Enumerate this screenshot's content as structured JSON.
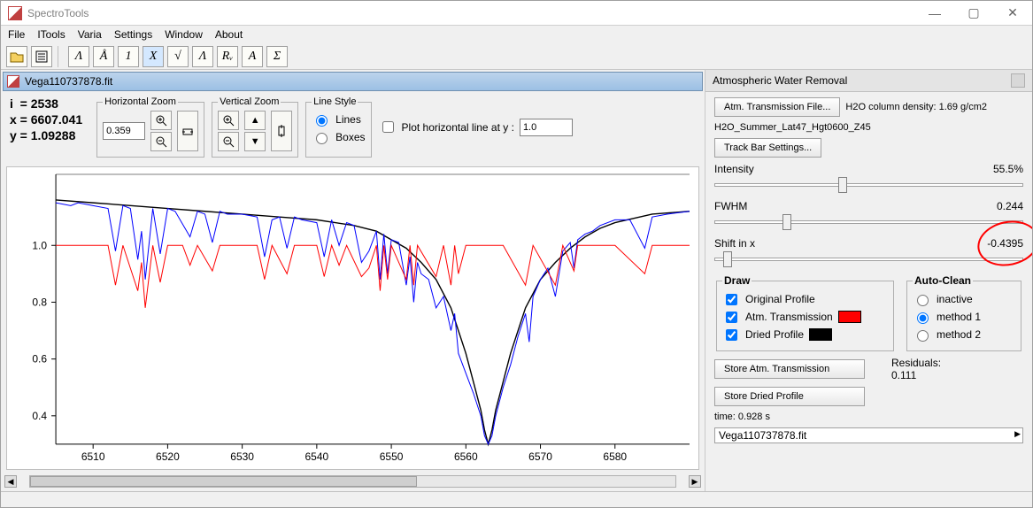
{
  "window": {
    "title": "SpectroTools",
    "minimize": "—",
    "maximize": "▢",
    "close": "✕"
  },
  "menubar": [
    "File",
    "ITools",
    "Varia",
    "Settings",
    "Window",
    "About"
  ],
  "toolbar": {
    "icons": [
      "open",
      "list"
    ],
    "letters": [
      "Λ",
      "Å",
      "1",
      "X",
      "√",
      "Λ",
      "Rᵥ",
      "A",
      "Σ"
    ]
  },
  "doc": {
    "title": "Vega110737878.fit"
  },
  "readout": {
    "i_label": "i",
    "i_val": "2538",
    "x_label": "x",
    "x_val": "6607.041",
    "y_label": "y",
    "y_val": "1.09288"
  },
  "hzoom": {
    "legend": "Horizontal Zoom",
    "value": "0.359",
    "in": "🔍+",
    "out": "🔍−",
    "reset": "⟲"
  },
  "vzoom": {
    "legend": "Vertical Zoom",
    "in": "🔍+",
    "out": "🔍−",
    "up": "▲",
    "down": "▼",
    "reset": "⟲"
  },
  "linestyle": {
    "legend": "Line Style",
    "lines": "Lines",
    "boxes": "Boxes"
  },
  "ploth": {
    "label": "Plot horizontal line at y :",
    "value": "1.0"
  },
  "chart": {
    "type": "line",
    "xlim": [
      6505,
      6590
    ],
    "ylim": [
      0.3,
      1.25
    ],
    "xticks": [
      6510,
      6520,
      6530,
      6540,
      6550,
      6560,
      6570,
      6580
    ],
    "yticks": [
      0.4,
      0.6,
      0.8,
      1.0
    ],
    "background": "#ffffff",
    "axis_color": "#000000",
    "tick_fontsize": 11,
    "series": {
      "blue": {
        "color": "#0000ff",
        "points": [
          [
            6505,
            1.15
          ],
          [
            6507,
            1.14
          ],
          [
            6508,
            1.15
          ],
          [
            6510,
            1.14
          ],
          [
            6512,
            1.13
          ],
          [
            6513,
            0.98
          ],
          [
            6514,
            1.14
          ],
          [
            6515,
            1.13
          ],
          [
            6516,
            0.95
          ],
          [
            6516.5,
            1.05
          ],
          [
            6517,
            0.88
          ],
          [
            6518,
            1.13
          ],
          [
            6519,
            0.97
          ],
          [
            6520,
            1.13
          ],
          [
            6521,
            1.12
          ],
          [
            6523,
            1.03
          ],
          [
            6524,
            1.12
          ],
          [
            6525,
            1.11
          ],
          [
            6526,
            1.01
          ],
          [
            6527,
            1.12
          ],
          [
            6528,
            1.11
          ],
          [
            6530,
            1.11
          ],
          [
            6532,
            1.1
          ],
          [
            6533,
            0.96
          ],
          [
            6534,
            1.09
          ],
          [
            6535,
            1.1
          ],
          [
            6536,
            0.99
          ],
          [
            6537,
            1.1
          ],
          [
            6538,
            1.09
          ],
          [
            6540,
            1.08
          ],
          [
            6541,
            0.96
          ],
          [
            6542,
            1.09
          ],
          [
            6543,
            1.0
          ],
          [
            6544,
            1.08
          ],
          [
            6545,
            1.07
          ],
          [
            6546,
            0.94
          ],
          [
            6547,
            0.98
          ],
          [
            6548,
            1.05
          ],
          [
            6548.5,
            0.88
          ],
          [
            6549,
            1.04
          ],
          [
            6549.5,
            0.9
          ],
          [
            6550,
            1.02
          ],
          [
            6551,
            1.01
          ],
          [
            6552,
            0.86
          ],
          [
            6552.5,
            0.96
          ],
          [
            6553,
            0.8
          ],
          [
            6553.5,
            0.94
          ],
          [
            6554,
            0.9
          ],
          [
            6555,
            0.88
          ],
          [
            6556,
            0.78
          ],
          [
            6557,
            0.82
          ],
          [
            6558,
            0.7
          ],
          [
            6558.5,
            0.76
          ],
          [
            6559,
            0.62
          ],
          [
            6560,
            0.55
          ],
          [
            6561,
            0.48
          ],
          [
            6562,
            0.4
          ],
          [
            6562.5,
            0.33
          ],
          [
            6563,
            0.3
          ],
          [
            6563.5,
            0.33
          ],
          [
            6564,
            0.4
          ],
          [
            6565,
            0.5
          ],
          [
            6566,
            0.58
          ],
          [
            6567,
            0.68
          ],
          [
            6568,
            0.76
          ],
          [
            6568.5,
            0.66
          ],
          [
            6569,
            0.82
          ],
          [
            6570,
            0.88
          ],
          [
            6571,
            0.92
          ],
          [
            6572,
            0.82
          ],
          [
            6573,
            0.98
          ],
          [
            6574,
            1.01
          ],
          [
            6574.5,
            0.92
          ],
          [
            6575,
            1.02
          ],
          [
            6576,
            1.04
          ],
          [
            6577,
            1.05
          ],
          [
            6578,
            1.07
          ],
          [
            6580,
            1.09
          ],
          [
            6582,
            1.09
          ],
          [
            6584,
            0.99
          ],
          [
            6585,
            1.1
          ],
          [
            6587,
            1.11
          ],
          [
            6590,
            1.12
          ]
        ]
      },
      "red": {
        "color": "#ff0000",
        "points": [
          [
            6505,
            1.0
          ],
          [
            6508,
            1.0
          ],
          [
            6510,
            1.0
          ],
          [
            6512,
            1.0
          ],
          [
            6513,
            0.86
          ],
          [
            6514,
            1.0
          ],
          [
            6516,
            0.84
          ],
          [
            6516.5,
            0.94
          ],
          [
            6517,
            0.78
          ],
          [
            6518,
            1.0
          ],
          [
            6519,
            0.87
          ],
          [
            6520,
            1.0
          ],
          [
            6522,
            1.0
          ],
          [
            6523,
            0.93
          ],
          [
            6524,
            1.0
          ],
          [
            6526,
            0.91
          ],
          [
            6527,
            1.0
          ],
          [
            6530,
            1.0
          ],
          [
            6532,
            1.0
          ],
          [
            6533,
            0.88
          ],
          [
            6534,
            1.0
          ],
          [
            6536,
            0.9
          ],
          [
            6537,
            1.0
          ],
          [
            6540,
            1.0
          ],
          [
            6541,
            0.89
          ],
          [
            6542,
            1.0
          ],
          [
            6543,
            0.93
          ],
          [
            6544,
            1.0
          ],
          [
            6546,
            0.89
          ],
          [
            6547,
            0.92
          ],
          [
            6548,
            1.0
          ],
          [
            6548.5,
            0.84
          ],
          [
            6549,
            1.0
          ],
          [
            6549.5,
            0.88
          ],
          [
            6550,
            1.0
          ],
          [
            6552,
            0.88
          ],
          [
            6552.5,
            1.0
          ],
          [
            6553,
            0.86
          ],
          [
            6553.5,
            1.0
          ],
          [
            6556,
            0.89
          ],
          [
            6557,
            1.0
          ],
          [
            6558,
            0.86
          ],
          [
            6558.5,
            1.0
          ],
          [
            6559,
            0.9
          ],
          [
            6560,
            1.0
          ],
          [
            6563,
            1.0
          ],
          [
            6565,
            1.0
          ],
          [
            6568,
            0.86
          ],
          [
            6569,
            1.0
          ],
          [
            6572,
            0.86
          ],
          [
            6573,
            1.0
          ],
          [
            6574.5,
            0.91
          ],
          [
            6575,
            1.0
          ],
          [
            6578,
            1.0
          ],
          [
            6580,
            1.0
          ],
          [
            6584,
            0.9
          ],
          [
            6585,
            1.0
          ],
          [
            6590,
            1.0
          ]
        ]
      },
      "black": {
        "color": "#000000",
        "points": [
          [
            6505,
            1.16
          ],
          [
            6510,
            1.15
          ],
          [
            6515,
            1.14
          ],
          [
            6520,
            1.13
          ],
          [
            6525,
            1.12
          ],
          [
            6530,
            1.11
          ],
          [
            6535,
            1.1
          ],
          [
            6540,
            1.09
          ],
          [
            6545,
            1.07
          ],
          [
            6548,
            1.05
          ],
          [
            6550,
            1.02
          ],
          [
            6552,
            0.99
          ],
          [
            6554,
            0.94
          ],
          [
            6556,
            0.88
          ],
          [
            6558,
            0.78
          ],
          [
            6560,
            0.62
          ],
          [
            6561,
            0.52
          ],
          [
            6562,
            0.42
          ],
          [
            6562.5,
            0.35
          ],
          [
            6563,
            0.3
          ],
          [
            6563.5,
            0.35
          ],
          [
            6564,
            0.42
          ],
          [
            6565,
            0.52
          ],
          [
            6566,
            0.62
          ],
          [
            6568,
            0.78
          ],
          [
            6570,
            0.88
          ],
          [
            6572,
            0.94
          ],
          [
            6574,
            0.99
          ],
          [
            6576,
            1.03
          ],
          [
            6578,
            1.06
          ],
          [
            6580,
            1.08
          ],
          [
            6585,
            1.11
          ],
          [
            6590,
            1.12
          ]
        ]
      }
    }
  },
  "panel": {
    "title": "Atmospheric Water Removal",
    "atm_file_btn": "Atm. Transmission File...",
    "h2o_col_label": "H2O column density: 1.69 g/cm2",
    "filename": "H2O_Summer_Lat47_Hgt0600_Z45",
    "trackbar_btn": "Track Bar Settings...",
    "sliders": {
      "intensity": {
        "label": "Intensity",
        "value": "55.5%",
        "thumb_pct": 40
      },
      "fwhm": {
        "label": "FWHM",
        "value": "0.244",
        "thumb_pct": 22
      },
      "shiftx": {
        "label": "Shift in x",
        "value": "-0.4395",
        "thumb_pct": 3
      }
    },
    "draw": {
      "legend": "Draw",
      "original": "Original Profile",
      "atm": "Atm. Transmission",
      "dried": "Dried Profile",
      "atm_color": "#ff0000",
      "dried_color": "#000000"
    },
    "auto": {
      "legend": "Auto-Clean",
      "inactive": "inactive",
      "m1": "method 1",
      "m2": "method 2",
      "residuals_label": "Residuals:",
      "residuals_value": "0.111"
    },
    "store_atm": "Store Atm. Transmission",
    "store_dried": "Store Dried Profile",
    "time_label": "time: 0.928 s",
    "status_file": "Vega110737878.fit"
  }
}
